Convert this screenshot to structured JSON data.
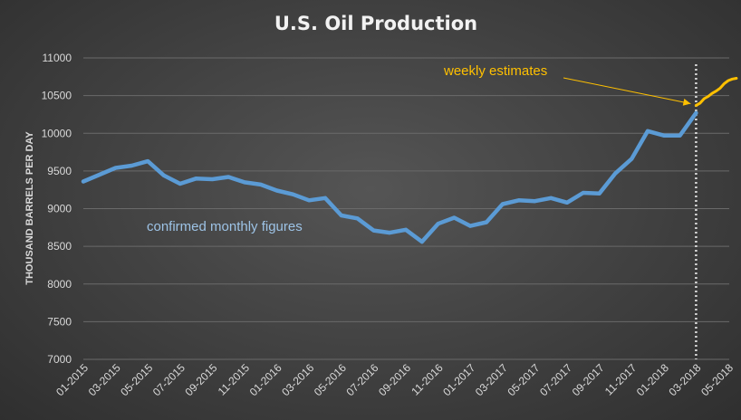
{
  "chart_data": {
    "type": "line",
    "title": "U.S. Oil Production",
    "ylabel": "THOUSAND BARRELS PER DAY",
    "xlabel": "",
    "ylim": [
      7000,
      11000
    ],
    "yticks": [
      7000,
      7500,
      8000,
      8500,
      9000,
      9500,
      10000,
      10500,
      11000
    ],
    "x_tick_labels": [
      "01-2015",
      "03-2015",
      "05-2015",
      "07-2015",
      "09-2015",
      "11-2015",
      "01-2016",
      "03-2016",
      "05-2016",
      "07-2016",
      "09-2016",
      "11-2016",
      "01-2017",
      "03-2017",
      "05-2017",
      "07-2017",
      "09-2017",
      "11-2017",
      "01-2018",
      "03-2018",
      "05-2018"
    ],
    "grid": "horizontal",
    "series": [
      {
        "color": "#5b9bd5",
        "x": [
          "01-2015",
          "02-2015",
          "03-2015",
          "04-2015",
          "05-2015",
          "06-2015",
          "07-2015",
          "08-2015",
          "09-2015",
          "10-2015",
          "11-2015",
          "12-2015",
          "01-2016",
          "02-2016",
          "03-2016",
          "04-2016",
          "05-2016",
          "06-2016",
          "07-2016",
          "08-2016",
          "09-2016",
          "10-2016",
          "11-2016",
          "12-2016",
          "01-2017",
          "02-2017",
          "03-2017",
          "04-2017",
          "05-2017",
          "06-2017",
          "07-2017",
          "08-2017",
          "09-2017",
          "10-2017",
          "11-2017",
          "12-2017",
          "01-2018",
          "02-2018",
          "03-2018"
        ],
        "values": [
          9360,
          9450,
          9540,
          9570,
          9630,
          9440,
          9330,
          9400,
          9390,
          9420,
          9350,
          9320,
          9240,
          9190,
          9110,
          9140,
          8910,
          8870,
          8710,
          8680,
          8720,
          8560,
          8800,
          8880,
          8770,
          8820,
          9060,
          9110,
          9100,
          9140,
          9080,
          9210,
          9200,
          9470,
          9660,
          10030,
          9970,
          9970,
          10270
        ]
      },
      {
        "color": "#ffc000",
        "x": [
          "03-2018 wk1",
          "03-2018 wk2",
          "03-2018 wk3",
          "03-2018 wk4",
          "04-2018 wk1",
          "04-2018 wk2",
          "04-2018 wk3",
          "04-2018 wk4",
          "05-2018 wk1",
          "05-2018 wk2",
          "05-2018 wk3"
        ],
        "x_pos": [
          38.0,
          38.25,
          38.5,
          38.75,
          39.0,
          39.25,
          39.5,
          39.75,
          40.0,
          40.25,
          40.5
        ],
        "values": [
          10370,
          10400,
          10460,
          10490,
          10530,
          10560,
          10600,
          10660,
          10700,
          10720,
          10730
        ]
      }
    ],
    "annotations": {
      "monthly": "confirmed monthly figures",
      "weekly": "weekly estimates"
    },
    "divider_at_month_index": 38
  },
  "colors": {
    "monthly_text": "#9dc3e6",
    "weekly_text": "#ffc000",
    "divider": "#d9d9d9",
    "grid": "#6a6a6a"
  }
}
